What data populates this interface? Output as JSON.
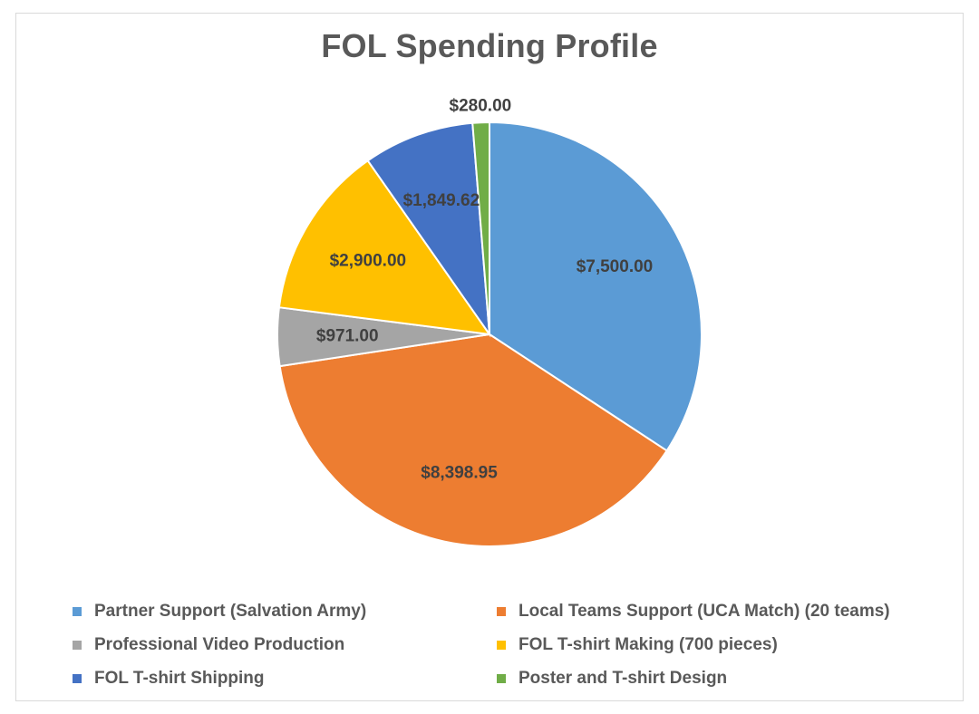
{
  "chart_data": {
    "type": "pie",
    "title": "FOL Spending Profile",
    "categories": [
      "Partner Support (Salvation Army)",
      "Local Teams Support (UCA Match) (20 teams)",
      "Professional Video Production",
      "FOL T-shirt Making (700 pieces)",
      "FOL T-shirt Shipping",
      "Poster and T-shirt Design"
    ],
    "values": [
      7500.0,
      8398.95,
      971.0,
      2900.0,
      1849.62,
      280.0
    ],
    "data_labels": [
      "$7,500.00",
      "$8,398.95",
      "$971.00",
      "$2,900.00",
      "$1,849.62",
      "$280.00"
    ],
    "colors": [
      "#5b9bd5",
      "#ed7d31",
      "#a5a5a5",
      "#ffc000",
      "#4472c4",
      "#70ad47"
    ],
    "legend_position": "bottom",
    "start_angle": "12 o'clock, clockwise"
  }
}
